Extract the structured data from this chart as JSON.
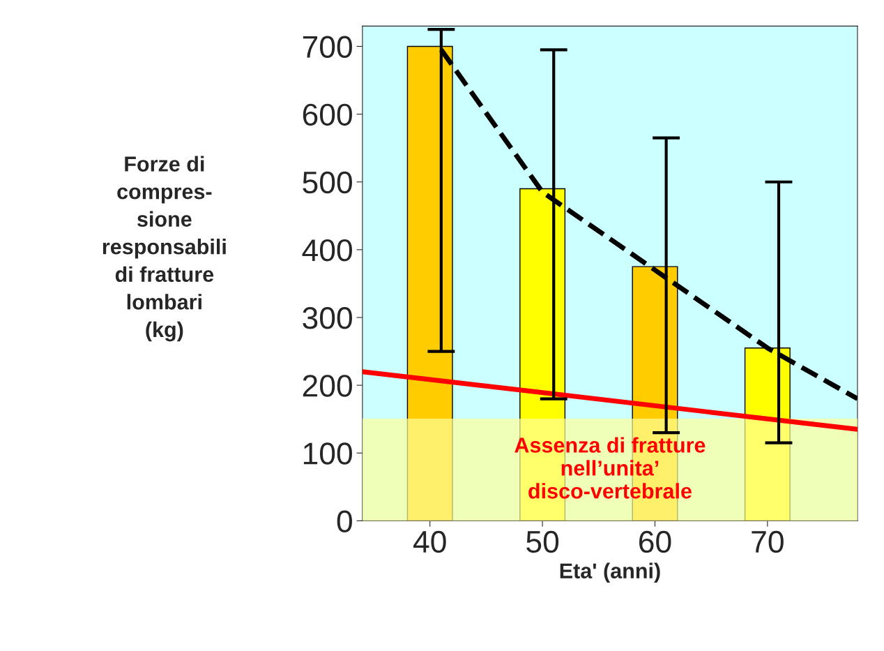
{
  "chart_data": {
    "type": "bar",
    "ylabel": "Forze di\ncompres-\nsione\nresponsabili\ndi fratture\nlombari\n(kg)",
    "xlabel": "Eta' (anni)",
    "x": [
      40,
      50,
      60,
      70
    ],
    "xlim": [
      34,
      78
    ],
    "xticks": [
      40,
      50,
      60,
      70
    ],
    "ylim": [
      0,
      730
    ],
    "yticks": [
      0,
      100,
      200,
      300,
      400,
      500,
      600,
      700
    ],
    "grid": false,
    "legend": false,
    "series": [
      {
        "colors": [
          "#ffcc00",
          "#ffff00",
          "#ffcc00",
          "#ffff00"
        ],
        "values": [
          700,
          490,
          375,
          255
        ],
        "errors": [
          [
            250,
            725
          ],
          [
            180,
            695
          ],
          [
            130,
            565
          ],
          [
            115,
            500
          ]
        ]
      },
      {
        "type": "line",
        "color": "#000000",
        "line_style": "dashed",
        "x": [
          41,
          50,
          60,
          70,
          78
        ],
        "values": [
          695,
          485,
          370,
          255,
          180
        ]
      },
      {
        "type": "line",
        "color": "#ff0000",
        "line_style": "solid",
        "x": [
          34,
          78
        ],
        "values": [
          220,
          135
        ]
      }
    ],
    "bands": [
      {
        "axis": "y",
        "from": 0,
        "to": 150,
        "color": "#ffff99",
        "label": "Assenza di fratture\nnell’unita’\ndisco-vertebrale"
      }
    ]
  }
}
